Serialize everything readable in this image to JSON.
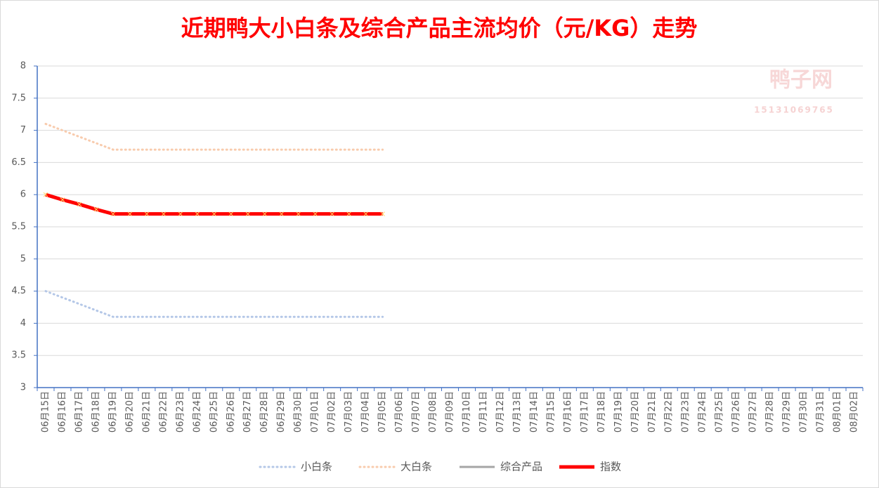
{
  "chart_data": {
    "type": "line",
    "title": "近期鸭大小白条及综合产品主流均价（元/KG）走势",
    "watermark": {
      "name": "鸭子网",
      "phone": "15131069765"
    },
    "categories": [
      "06月15日",
      "06月16日",
      "06月17日",
      "06月18日",
      "06月19日",
      "06月20日",
      "06月21日",
      "06月22日",
      "06月23日",
      "06月24日",
      "06月25日",
      "06月26日",
      "06月27日",
      "06月28日",
      "06月29日",
      "06月30日",
      "07月01日",
      "07月02日",
      "07月03日",
      "07月04日",
      "07月05日",
      "07月06日",
      "07月07日",
      "07月08日",
      "07月09日",
      "07月10日",
      "07月11日",
      "07月12日",
      "07月13日",
      "07月14日",
      "07月15日",
      "07月16日",
      "07月17日",
      "07月18日",
      "07月19日",
      "07月20日",
      "07月21日",
      "07月22日",
      "07月23日",
      "07月24日",
      "07月25日",
      "07月26日",
      "07月27日",
      "07月28日",
      "07月29日",
      "07月30日",
      "07月31日",
      "08月01日",
      "08月02日"
    ],
    "series": [
      {
        "name": "小白条",
        "color": "#b4c7e7",
        "line_style": "dotted",
        "values": [
          4.5,
          4.4,
          4.3,
          4.2,
          4.1,
          4.1,
          4.1,
          4.1,
          4.1,
          4.1,
          4.1,
          4.1,
          4.1,
          4.1,
          4.1,
          4.1,
          4.1,
          4.1,
          4.1,
          4.1,
          4.1,
          null,
          null,
          null,
          null,
          null,
          null,
          null,
          null,
          null,
          null,
          null,
          null,
          null,
          null,
          null,
          null,
          null,
          null,
          null,
          null,
          null,
          null,
          null,
          null,
          null,
          null,
          null,
          null
        ]
      },
      {
        "name": "大白条",
        "color": "#f8cbad",
        "line_style": "dotted",
        "values": [
          7.1,
          7.0,
          6.9,
          6.8,
          6.7,
          6.7,
          6.7,
          6.7,
          6.7,
          6.7,
          6.7,
          6.7,
          6.7,
          6.7,
          6.7,
          6.7,
          6.7,
          6.7,
          6.7,
          6.7,
          6.7,
          null,
          null,
          null,
          null,
          null,
          null,
          null,
          null,
          null,
          null,
          null,
          null,
          null,
          null,
          null,
          null,
          null,
          null,
          null,
          null,
          null,
          null,
          null,
          null,
          null,
          null,
          null,
          null
        ]
      },
      {
        "name": "综合产品",
        "color": "#a5a5a5",
        "line_style": "solid",
        "values": [
          null,
          null,
          null,
          null,
          null,
          null,
          null,
          null,
          null,
          null,
          null,
          null,
          null,
          null,
          null,
          null,
          null,
          null,
          null,
          null,
          null,
          null,
          null,
          null,
          null,
          null,
          null,
          null,
          null,
          null,
          null,
          null,
          null,
          null,
          null,
          null,
          null,
          null,
          null,
          null,
          null,
          null,
          null,
          null,
          null,
          null,
          null,
          null,
          null
        ]
      },
      {
        "name": "指数",
        "color": "#ff0000",
        "line_style": "thick-marker",
        "values": [
          6.0,
          5.92,
          5.85,
          5.77,
          5.7,
          5.7,
          5.7,
          5.7,
          5.7,
          5.7,
          5.7,
          5.7,
          5.7,
          5.7,
          5.7,
          5.7,
          5.7,
          5.7,
          5.7,
          5.7,
          5.7,
          null,
          null,
          null,
          null,
          null,
          null,
          null,
          null,
          null,
          null,
          null,
          null,
          null,
          null,
          null,
          null,
          null,
          null,
          null,
          null,
          null,
          null,
          null,
          null,
          null,
          null,
          null,
          null
        ]
      }
    ],
    "ylim": [
      3,
      8
    ],
    "yticks": [
      3,
      3.5,
      4,
      4.5,
      5,
      5.5,
      6,
      6.5,
      7,
      7.5,
      8
    ],
    "grid": true,
    "legend": "bottom"
  }
}
